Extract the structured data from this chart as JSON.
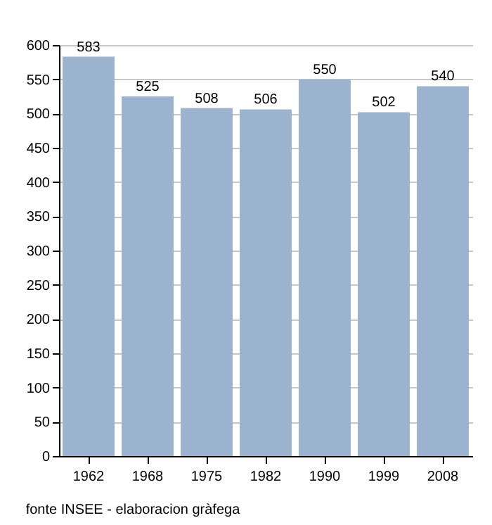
{
  "chart_data": {
    "type": "bar",
    "categories": [
      "1962",
      "1968",
      "1975",
      "1982",
      "1990",
      "1999",
      "2008"
    ],
    "values": [
      583,
      525,
      508,
      506,
      550,
      502,
      540
    ],
    "color": "#9bb3cf",
    "data_labels": true,
    "ylim": [
      0,
      600
    ],
    "yticks": [
      0,
      50,
      100,
      150,
      200,
      250,
      300,
      350,
      400,
      450,
      500,
      550,
      600
    ],
    "grid": "y",
    "annotations": [
      "fonte INSEE - elaboracion gràfega"
    ]
  }
}
